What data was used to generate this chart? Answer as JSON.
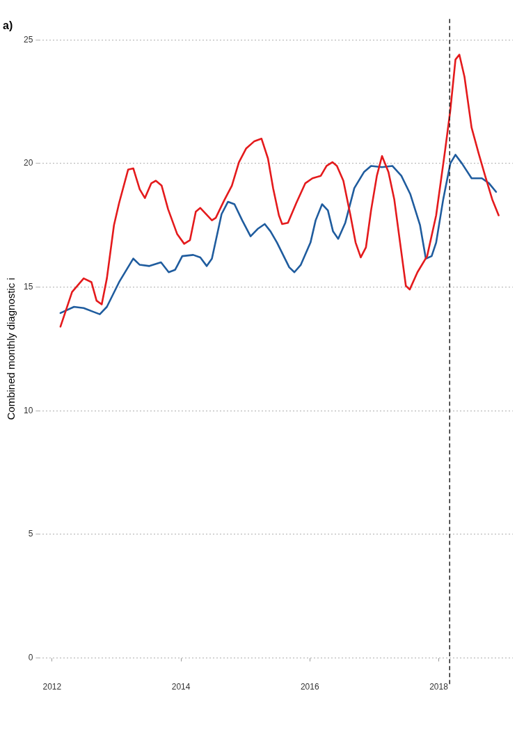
{
  "chart_data": {
    "type": "line",
    "title": "a)",
    "ylabel": "Combined monthly diagnostic i",
    "xlim": [
      2011.8,
      2019.15
    ],
    "xticks": [
      2012,
      2014,
      2016,
      2018
    ],
    "ylim": [
      0,
      25
    ],
    "yticks": [
      0,
      5,
      10,
      15,
      20,
      25
    ],
    "grid": "y",
    "legend": false,
    "marker": "none",
    "line_style": "solid",
    "ref_lines": [
      {
        "axis": "x",
        "value": 2018.17,
        "line_style": "dashed",
        "color": "#222222"
      }
    ],
    "series": [
      {
        "color": "#e41a1c",
        "x": [
          2012.13,
          2012.31,
          2012.49,
          2012.61,
          2012.69,
          2012.77,
          2012.85,
          2012.96,
          2013.04,
          2013.18,
          2013.26,
          2013.36,
          2013.44,
          2013.54,
          2013.61,
          2013.7,
          2013.8,
          2013.94,
          2014.05,
          2014.14,
          2014.23,
          2014.3,
          2014.48,
          2014.54,
          2014.67,
          2014.79,
          2014.9,
          2015.01,
          2015.14,
          2015.25,
          2015.35,
          2015.43,
          2015.52,
          2015.57,
          2015.66,
          2015.79,
          2015.93,
          2016.04,
          2016.17,
          2016.26,
          2016.35,
          2016.42,
          2016.52,
          2016.63,
          2016.71,
          2016.79,
          2016.87,
          2016.95,
          2017.04,
          2017.12,
          2017.22,
          2017.31,
          2017.4,
          2017.49,
          2017.55,
          2017.67,
          2017.82,
          2017.96,
          2018.1,
          2018.18,
          2018.26,
          2018.32,
          2018.4,
          2018.51,
          2018.62,
          2018.72,
          2018.83,
          2018.93
        ],
        "values": [
          13.4,
          14.8,
          15.35,
          15.2,
          14.45,
          14.3,
          15.35,
          17.5,
          18.4,
          19.75,
          19.8,
          18.95,
          18.6,
          19.2,
          19.3,
          19.1,
          18.15,
          17.15,
          16.75,
          16.9,
          18.05,
          18.2,
          17.7,
          17.8,
          18.5,
          19.1,
          20.05,
          20.6,
          20.9,
          21.0,
          20.2,
          19.0,
          17.9,
          17.55,
          17.6,
          18.4,
          19.2,
          19.4,
          19.5,
          19.9,
          20.05,
          19.9,
          19.3,
          17.9,
          16.8,
          16.2,
          16.6,
          18.1,
          19.5,
          20.3,
          19.65,
          18.55,
          16.8,
          15.05,
          14.9,
          15.6,
          16.25,
          17.9,
          20.55,
          22.15,
          24.2,
          24.4,
          23.5,
          21.45,
          20.4,
          19.5,
          18.55,
          17.9
        ]
      },
      {
        "color": "#1f5c9e",
        "x": [
          2012.13,
          2012.34,
          2012.49,
          2012.64,
          2012.74,
          2012.85,
          2013.04,
          2013.26,
          2013.36,
          2013.51,
          2013.69,
          2013.81,
          2013.91,
          2014.02,
          2014.19,
          2014.3,
          2014.4,
          2014.48,
          2014.63,
          2014.73,
          2014.83,
          2014.95,
          2015.08,
          2015.19,
          2015.3,
          2015.39,
          2015.49,
          2015.68,
          2015.76,
          2015.86,
          2016.01,
          2016.09,
          2016.19,
          2016.28,
          2016.36,
          2016.44,
          2016.55,
          2016.69,
          2016.84,
          2016.95,
          2017.12,
          2017.28,
          2017.42,
          2017.56,
          2017.71,
          2017.8,
          2017.89,
          2017.96,
          2018.07,
          2018.18,
          2018.26,
          2018.36,
          2018.51,
          2018.67,
          2018.78,
          2018.89
        ],
        "values": [
          13.95,
          14.2,
          14.15,
          14.0,
          13.9,
          14.2,
          15.2,
          16.15,
          15.9,
          15.85,
          16.0,
          15.6,
          15.7,
          16.25,
          16.3,
          16.2,
          15.85,
          16.15,
          17.95,
          18.45,
          18.35,
          17.7,
          17.05,
          17.35,
          17.55,
          17.25,
          16.8,
          15.8,
          15.6,
          15.9,
          16.8,
          17.7,
          18.35,
          18.1,
          17.25,
          16.95,
          17.6,
          19.0,
          19.65,
          19.9,
          19.85,
          19.9,
          19.5,
          18.75,
          17.5,
          16.15,
          16.25,
          16.8,
          18.55,
          20.0,
          20.35,
          20.0,
          19.4,
          19.4,
          19.2,
          18.85
        ]
      }
    ]
  }
}
